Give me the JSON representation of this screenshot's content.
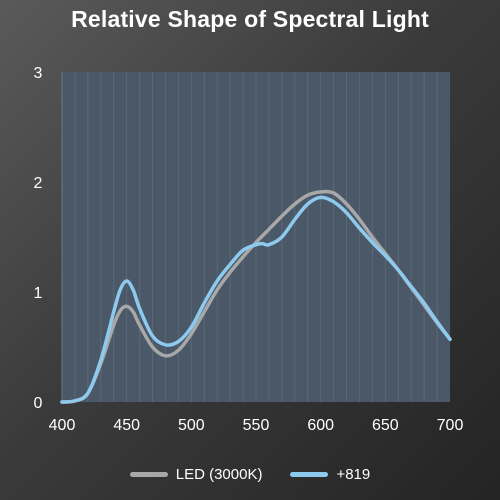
{
  "chart_data": {
    "type": "line",
    "title": "Relative Shape of Spectral Light",
    "xlabel": "",
    "ylabel": "",
    "xlim": [
      400,
      700
    ],
    "ylim": [
      0,
      3
    ],
    "x_ticks": [
      "400",
      "450",
      "500",
      "550",
      "600",
      "650",
      "700"
    ],
    "y_ticks": [
      "0",
      "1",
      "2",
      "3"
    ],
    "grid": true,
    "legend_position": "bottom",
    "plot_background": "#4a5868",
    "series": [
      {
        "name": "LED (3000K)",
        "color": "#a8a8a8",
        "x": [
          400,
          410,
          420,
          430,
          440,
          445,
          450,
          455,
          460,
          470,
          480,
          490,
          500,
          510,
          520,
          530,
          540,
          550,
          560,
          570,
          580,
          590,
          600,
          610,
          620,
          630,
          640,
          650,
          660,
          670,
          680,
          690,
          700
        ],
        "y": [
          0.0,
          0.01,
          0.08,
          0.35,
          0.7,
          0.83,
          0.87,
          0.82,
          0.7,
          0.5,
          0.42,
          0.47,
          0.62,
          0.82,
          1.02,
          1.18,
          1.32,
          1.45,
          1.57,
          1.69,
          1.8,
          1.88,
          1.91,
          1.9,
          1.8,
          1.66,
          1.5,
          1.35,
          1.2,
          1.04,
          0.88,
          0.72,
          0.57
        ]
      },
      {
        "name": "+819",
        "color": "#8ec9ee",
        "x": [
          400,
          410,
          420,
          430,
          440,
          445,
          450,
          455,
          460,
          470,
          480,
          490,
          500,
          510,
          520,
          530,
          540,
          550,
          555,
          560,
          570,
          580,
          590,
          600,
          610,
          620,
          630,
          640,
          650,
          660,
          670,
          680,
          690,
          700
        ],
        "y": [
          0.0,
          0.01,
          0.08,
          0.38,
          0.82,
          1.02,
          1.1,
          1.02,
          0.85,
          0.6,
          0.52,
          0.55,
          0.68,
          0.9,
          1.1,
          1.25,
          1.38,
          1.43,
          1.44,
          1.43,
          1.5,
          1.66,
          1.8,
          1.86,
          1.82,
          1.72,
          1.58,
          1.45,
          1.33,
          1.2,
          1.05,
          0.9,
          0.73,
          0.57
        ]
      }
    ]
  }
}
